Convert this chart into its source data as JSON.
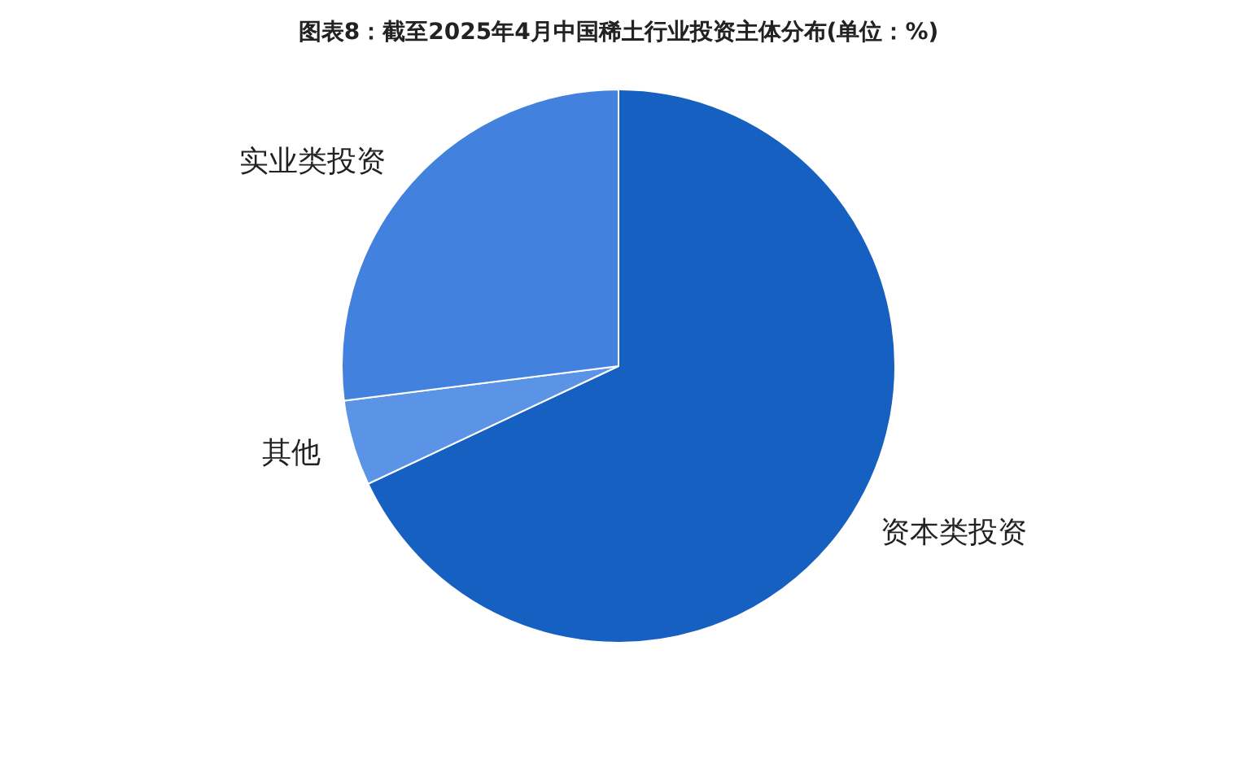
{
  "chart_data": {
    "type": "pie",
    "title": "图表8：截至2025年4月中国稀土行业投资主体分布(单位：%)",
    "categories": [
      "资本类投资",
      "其他",
      "实业类投资"
    ],
    "values": [
      68,
      5,
      27
    ],
    "colors": [
      "#1660c2",
      "#5b94e6",
      "#4282de"
    ]
  }
}
